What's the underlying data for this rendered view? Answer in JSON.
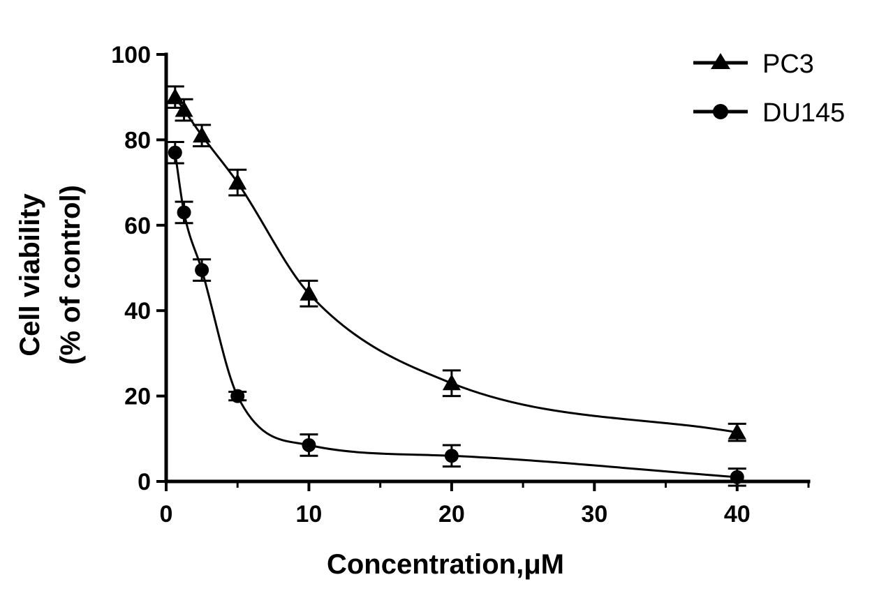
{
  "chart_data": {
    "type": "scatter",
    "title": "",
    "xlabel": "Concentration,μM",
    "ylabel_line1": "Cell viability",
    "ylabel_line2": "(% of control)",
    "xlim": [
      0,
      45
    ],
    "ylim": [
      0,
      100
    ],
    "x_ticks": [
      0,
      10,
      20,
      30,
      40
    ],
    "x_minor_ticks": [
      5,
      15,
      25,
      35,
      45
    ],
    "y_ticks": [
      0,
      20,
      40,
      60,
      80,
      100
    ],
    "grid": false,
    "legend_position": "top-right",
    "series": [
      {
        "name": "PC3",
        "marker": "triangle",
        "color": "#000000",
        "x": [
          0.625,
          1.25,
          2.5,
          5,
          10,
          20,
          40
        ],
        "y": [
          90,
          87,
          81,
          70,
          44,
          23,
          11.5
        ],
        "err": [
          2.5,
          2.5,
          2.5,
          3,
          3,
          3,
          2
        ]
      },
      {
        "name": "DU145",
        "marker": "circle",
        "color": "#000000",
        "x": [
          0.625,
          1.25,
          2.5,
          5,
          10,
          20,
          40
        ],
        "y": [
          77,
          63,
          49.5,
          20,
          8.5,
          6,
          1
        ],
        "err": [
          2.5,
          2.5,
          2.5,
          1,
          2.5,
          2.5,
          2
        ]
      }
    ]
  }
}
